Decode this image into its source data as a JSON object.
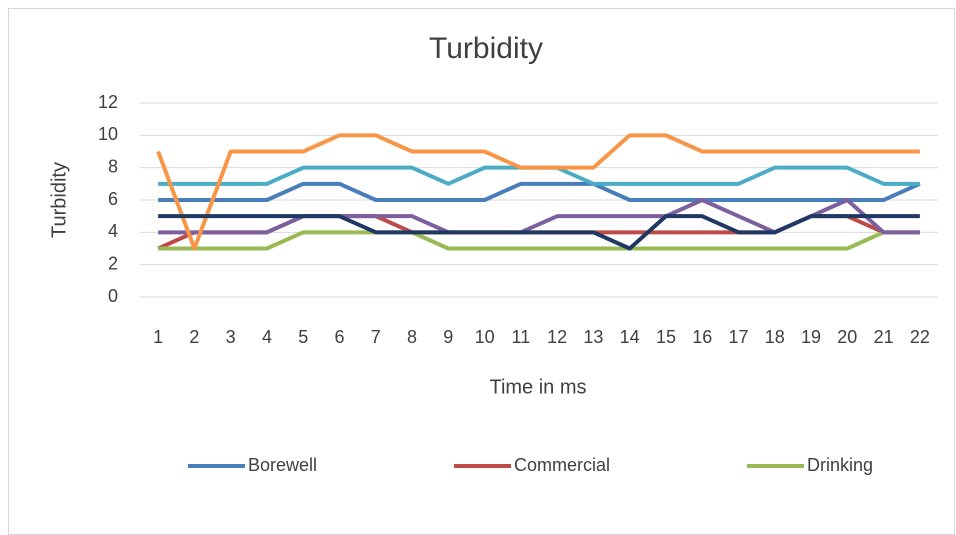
{
  "chart_data": {
    "type": "line",
    "title": "Turbidity",
    "x_label": "Time in ms",
    "y_label": "Turbidity",
    "categories": [
      "1",
      "2",
      "3",
      "4",
      "5",
      "6",
      "7",
      "8",
      "9",
      "10",
      "11",
      "12",
      "13",
      "14",
      "15",
      "16",
      "17",
      "18",
      "19",
      "20",
      "21",
      "22"
    ],
    "series": [
      {
        "name": "Borewell",
        "color": "#4a7ebb",
        "values": [
          6,
          6,
          6,
          6,
          7,
          7,
          6,
          6,
          6,
          6,
          7,
          7,
          7,
          6,
          6,
          6,
          6,
          6,
          6,
          6,
          6,
          7
        ]
      },
      {
        "name": "Commercial",
        "color": "#be4b48",
        "values": [
          3,
          4,
          4,
          4,
          5,
          5,
          5,
          4,
          4,
          4,
          4,
          4,
          4,
          4,
          4,
          4,
          4,
          4,
          5,
          5,
          4,
          4
        ]
      },
      {
        "name": "Drinking",
        "color": "#98b954",
        "values": [
          3,
          3,
          3,
          3,
          4,
          4,
          4,
          4,
          3,
          3,
          3,
          3,
          3,
          3,
          3,
          3,
          3,
          3,
          3,
          3,
          4,
          4
        ]
      },
      {
        "color": "#7d5fa0",
        "values": [
          4,
          4,
          4,
          4,
          5,
          5,
          5,
          5,
          4,
          4,
          4,
          5,
          5,
          5,
          5,
          6,
          5,
          4,
          5,
          6,
          4,
          4
        ]
      },
      {
        "color": "#4bacc6",
        "values": [
          7,
          7,
          7,
          7,
          8,
          8,
          8,
          8,
          7,
          8,
          8,
          8,
          7,
          7,
          7,
          7,
          7,
          8,
          8,
          8,
          7,
          7
        ]
      },
      {
        "color": "#f79646",
        "values": [
          9,
          3,
          9,
          9,
          9,
          10,
          10,
          9,
          9,
          9,
          8,
          8,
          8,
          10,
          10,
          9,
          9,
          9,
          9,
          9,
          9,
          9
        ]
      },
      {
        "color": "#1f3864",
        "values": [
          5,
          5,
          5,
          5,
          5,
          5,
          4,
          4,
          4,
          4,
          4,
          4,
          4,
          3,
          5,
          5,
          4,
          4,
          5,
          5,
          5,
          5
        ]
      }
    ],
    "ylim": [
      0,
      12
    ],
    "yticks": [
      0,
      2,
      4,
      6,
      8,
      10,
      12
    ],
    "grid": true,
    "legend": "bottom"
  }
}
